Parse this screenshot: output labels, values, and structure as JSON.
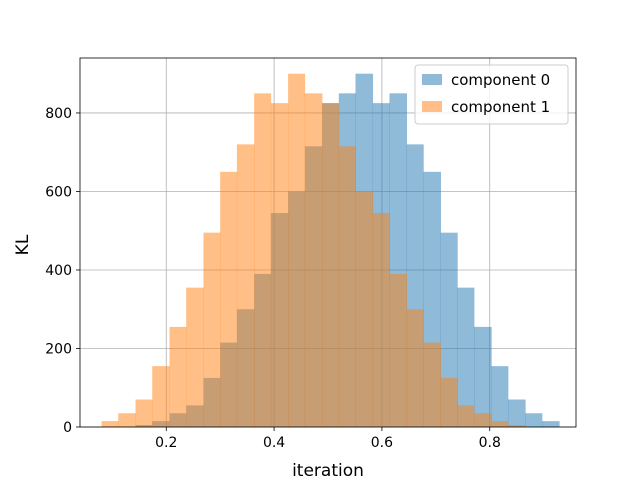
{
  "chart_data": {
    "type": "bar",
    "title": "",
    "xlabel": "iteration",
    "ylabel": "KL",
    "xlim": [
      0.04,
      0.96
    ],
    "ylim": [
      0,
      940
    ],
    "x_ticks": [
      "0.2",
      "0.4",
      "0.6",
      "0.8"
    ],
    "x_tick_values": [
      0.2,
      0.4,
      0.6,
      0.8
    ],
    "y_ticks": [
      "0",
      "200",
      "400",
      "600",
      "800"
    ],
    "y_tick_values": [
      0,
      200,
      400,
      600,
      800
    ],
    "grid": true,
    "legend_position": "top-right",
    "bin_edges": [
      0.08,
      0.111,
      0.143,
      0.174,
      0.206,
      0.237,
      0.269,
      0.3,
      0.331,
      0.363,
      0.394,
      0.426,
      0.457,
      0.489,
      0.52,
      0.551,
      0.583,
      0.614,
      0.646,
      0.677,
      0.709,
      0.74,
      0.771,
      0.803,
      0.834,
      0.866,
      0.897,
      0.929
    ],
    "series": [
      {
        "name": "component 0",
        "color": "#1f77b4",
        "bins_start": 0.143,
        "values": [
          5,
          15,
          35,
          55,
          125,
          215,
          300,
          390,
          545,
          600,
          715,
          825,
          850,
          900,
          825,
          850,
          720,
          650,
          495,
          355,
          255,
          155,
          70,
          35,
          15
        ]
      },
      {
        "name": "component 1",
        "color": "#ff7f0e",
        "bins_start": 0.08,
        "values": [
          15,
          35,
          70,
          155,
          255,
          355,
          495,
          650,
          720,
          850,
          825,
          900,
          850,
          825,
          715,
          600,
          545,
          390,
          300,
          215,
          125,
          55,
          35,
          15,
          5
        ]
      }
    ],
    "opacity": 0.5
  }
}
